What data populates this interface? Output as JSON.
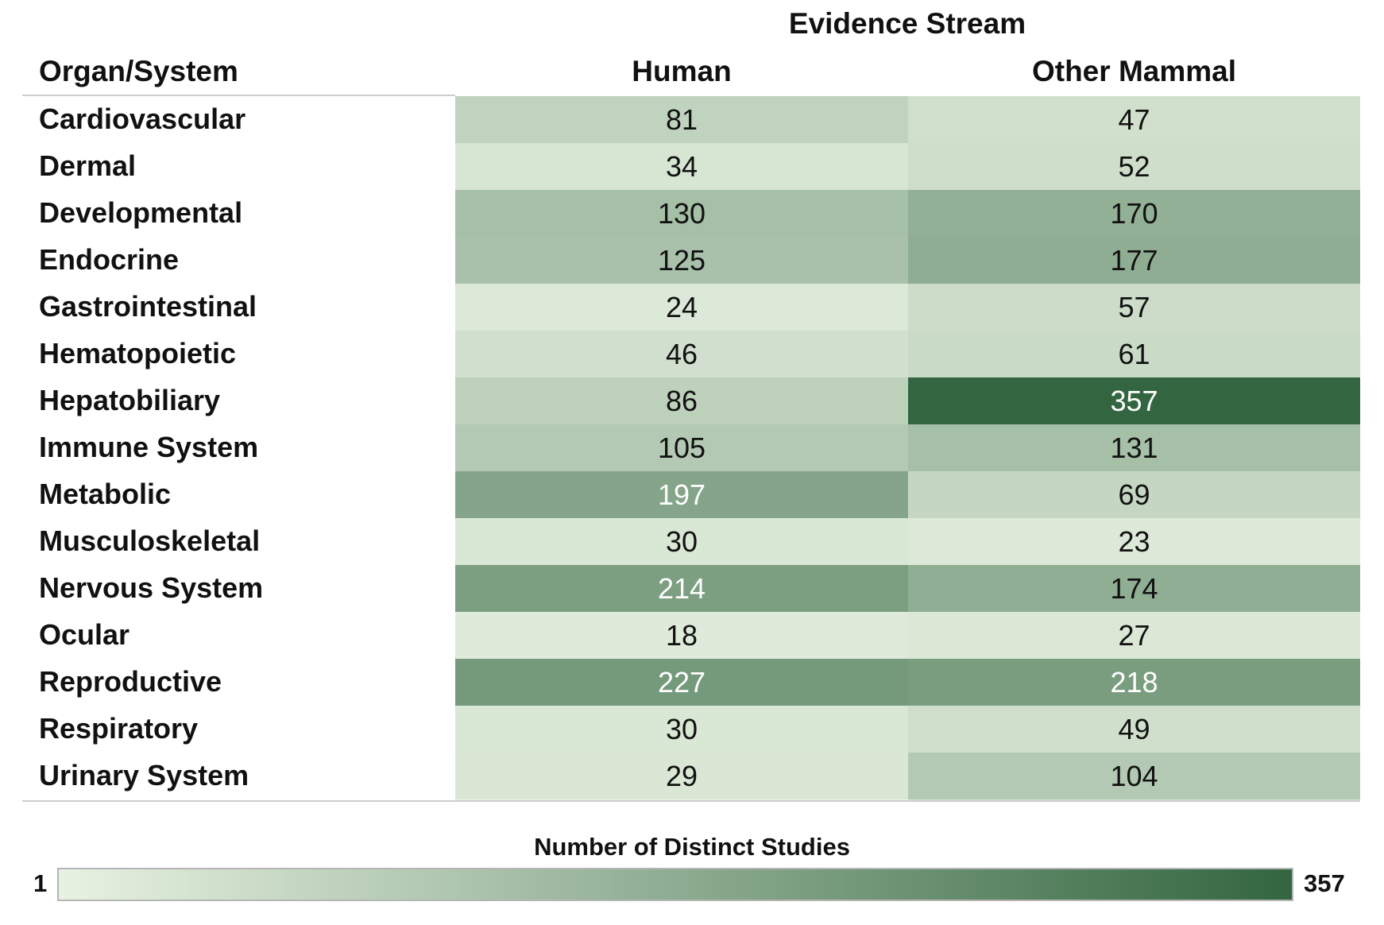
{
  "chart_data": {
    "type": "heatmap",
    "title": "Evidence Stream",
    "row_header": "Organ/System",
    "columns": [
      "Human",
      "Other Mammal"
    ],
    "rows": [
      {
        "label": "Cardiovascular",
        "values": [
          81,
          47
        ]
      },
      {
        "label": "Dermal",
        "values": [
          34,
          52
        ]
      },
      {
        "label": "Developmental",
        "values": [
          130,
          170
        ]
      },
      {
        "label": "Endocrine",
        "values": [
          125,
          177
        ]
      },
      {
        "label": "Gastrointestinal",
        "values": [
          24,
          57
        ]
      },
      {
        "label": "Hematopoietic",
        "values": [
          46,
          61
        ]
      },
      {
        "label": "Hepatobiliary",
        "values": [
          86,
          357
        ]
      },
      {
        "label": "Immune System",
        "values": [
          105,
          131
        ]
      },
      {
        "label": "Metabolic",
        "values": [
          197,
          69
        ]
      },
      {
        "label": "Musculoskeletal",
        "values": [
          30,
          23
        ]
      },
      {
        "label": "Nervous System",
        "values": [
          214,
          174
        ]
      },
      {
        "label": "Ocular",
        "values": [
          18,
          27
        ]
      },
      {
        "label": "Reproductive",
        "values": [
          227,
          218
        ]
      },
      {
        "label": "Respiratory",
        "values": [
          30,
          49
        ]
      },
      {
        "label": "Urinary System",
        "values": [
          29,
          104
        ]
      }
    ],
    "colorbar": {
      "title": "Number of Distinct Studies",
      "min_label": "1",
      "max_label": "357",
      "min": 1,
      "max": 357,
      "color_low": "#e8f2e2",
      "color_high": "#336640"
    }
  }
}
